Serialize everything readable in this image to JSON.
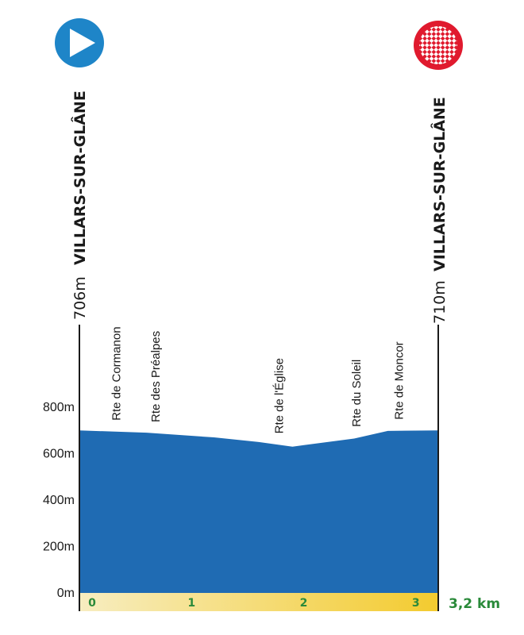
{
  "chart_data": {
    "type": "area",
    "x_unit": "km",
    "y_unit": "m",
    "ylim": [
      0,
      800
    ],
    "yticks": [
      "0m",
      "200m",
      "400m",
      "600m",
      "800m"
    ],
    "ytick_values": [
      0,
      200,
      400,
      600,
      800
    ],
    "xticks": [
      "0",
      "1",
      "2",
      "3"
    ],
    "xtick_values": [
      0,
      1,
      2,
      3
    ],
    "xlim": [
      0,
      3.2
    ],
    "distance_label": "3,2 km",
    "series": [
      {
        "x": [
          0,
          0.6,
          1.2,
          1.6,
          1.9,
          2.45,
          2.75,
          3.2
        ],
        "y": [
          700,
          690,
          670,
          650,
          630,
          665,
          698,
          700
        ]
      }
    ],
    "fill_color": "#1f6bb3",
    "start": {
      "name": "VILLARS-SUR-GLÂNE",
      "altitude": "706m",
      "icon": "play-icon",
      "color": "#1e85c8"
    },
    "finish": {
      "name": "VILLARS-SUR-GLÂNE",
      "altitude": "710m",
      "icon": "checkered-flag-icon",
      "color": "#e01a2e"
    },
    "annotations": [
      {
        "label": "Rte de Cormanon",
        "km": 0.33
      },
      {
        "label": "Rte des Préalpes",
        "km": 0.68
      },
      {
        "label": "Rte de l'Église",
        "km": 1.78
      },
      {
        "label": "Rte du Soleil",
        "km": 2.47
      },
      {
        "label": "Rte de Moncor",
        "km": 2.85
      }
    ]
  }
}
